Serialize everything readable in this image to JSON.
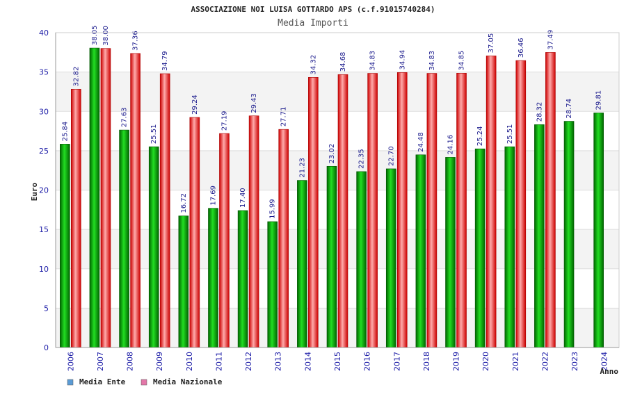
{
  "chart_data": {
    "type": "bar",
    "title": "ASSOCIAZIONE NOI LUISA GOTTARDO APS (c.f.91015740284)",
    "subtitle": "Media Importi",
    "ylabel": "Euro",
    "xlabel": "Anno",
    "ylim": [
      0,
      40
    ],
    "yticks": [
      0,
      5,
      10,
      15,
      20,
      25,
      30,
      35,
      40
    ],
    "grid": true,
    "legend_position": "bottom-left",
    "categories": [
      "2006",
      "2007",
      "2008",
      "2009",
      "2010",
      "2011",
      "2012",
      "2013",
      "2014",
      "2015",
      "2016",
      "2017",
      "2018",
      "2019",
      "2020",
      "2021",
      "2022",
      "2023",
      "2024"
    ],
    "series": [
      {
        "name": "Media Ente",
        "color": "#00b000",
        "legend_color": "#5b9bd5",
        "values": [
          25.84,
          38.05,
          27.63,
          25.51,
          16.72,
          17.69,
          17.4,
          15.99,
          21.23,
          23.02,
          22.35,
          22.7,
          24.48,
          24.16,
          25.24,
          25.51,
          28.32,
          28.74,
          29.81
        ],
        "labels": [
          "25.84",
          "38.05",
          "27.63",
          "25.51",
          "16.72",
          "17.69",
          "17.40",
          "15.99",
          "21.23",
          "23.02",
          "22.35",
          "22.70",
          "24.48",
          "24.16",
          "25.24",
          "25.51",
          "28.32",
          "28.74",
          "29.81"
        ]
      },
      {
        "name": "Media Nazionale",
        "color": "#ee2222",
        "legend_color": "#e377a8",
        "values": [
          32.82,
          38.0,
          37.36,
          34.79,
          29.24,
          27.19,
          29.43,
          27.71,
          34.32,
          34.68,
          34.83,
          34.94,
          34.83,
          34.85,
          37.05,
          36.46,
          37.49,
          null,
          null
        ],
        "labels": [
          "32.82",
          "38.00",
          "37.36",
          "34.79",
          "29.24",
          "27.19",
          "29.43",
          "27.71",
          "34.32",
          "34.68",
          "34.83",
          "34.94",
          "34.83",
          "34.85",
          "37.05",
          "36.46",
          "37.49",
          "",
          ""
        ]
      }
    ]
  }
}
